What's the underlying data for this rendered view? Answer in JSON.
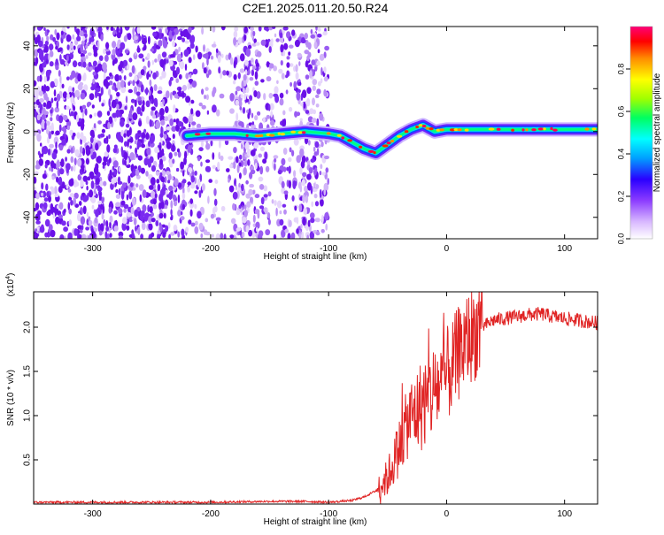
{
  "page": {
    "title": "C2E1.2025.011.20.50.R24"
  },
  "colors": {
    "snr_line": "#e02424",
    "axis": "#000000",
    "spectrogram_noise": "#7a1fe0",
    "colormap": [
      "#ffffff",
      "#ece0ff",
      "#8c3cff",
      "#2a00ff",
      "#00a0ff",
      "#00ffff",
      "#00ff60",
      "#a0ff00",
      "#ffff00",
      "#ff8c00",
      "#ff0000",
      "#ff0078"
    ]
  },
  "chart_data": [
    {
      "type": "heatmap",
      "title": "C2E1.2025.011.20.50.R24",
      "xlabel": "Height of straight line (km)",
      "ylabel": "Frequency (Hz)",
      "xlim": [
        -350,
        128
      ],
      "ylim": [
        -50,
        49
      ],
      "xticks": [
        -300,
        -200,
        -100,
        0,
        100
      ],
      "yticks": [
        -40,
        -20,
        0,
        20,
        40
      ],
      "colorbar": {
        "label": "Normalized spectral amplitude",
        "range": [
          0.0,
          1.0
        ],
        "ticks": [
          0.0,
          0.2,
          0.4,
          0.6,
          0.8
        ]
      },
      "signal_track": {
        "x": [
          -220,
          -200,
          -180,
          -160,
          -140,
          -120,
          -100,
          -90,
          -80,
          -70,
          -60,
          -50,
          -40,
          -30,
          -20,
          -10,
          0,
          20,
          40,
          60,
          80,
          100,
          128
        ],
        "frequency": [
          -2,
          -1,
          -1,
          -2,
          -1,
          0,
          -1,
          -2,
          -5,
          -8,
          -10,
          -6,
          -2,
          1,
          3,
          0,
          1,
          1,
          1,
          1,
          1,
          1,
          1
        ]
      },
      "noise_region": {
        "x_start": -350,
        "x_end": -100
      }
    },
    {
      "type": "line",
      "title": "",
      "xlabel": "Height of straight line (km)",
      "ylabel": "SNR (10 * v/v)",
      "y_exponent_label": "(x10",
      "y_exponent_power": "4",
      "y_exponent_close": ")",
      "xlim": [
        -350,
        128
      ],
      "ylim": [
        0,
        2.4
      ],
      "xticks": [
        -300,
        -200,
        -100,
        0,
        100
      ],
      "yticks": [
        0.5,
        1.0,
        1.5,
        2.0
      ],
      "series": [
        {
          "x": [
            -350,
            -300,
            -200,
            -150,
            -120,
            -100,
            -80,
            -70,
            -60,
            -50,
            -40,
            -35,
            -30,
            -25,
            -20,
            -15,
            -10,
            -5,
            0,
            5,
            10,
            15,
            20,
            25,
            30,
            40,
            50,
            60,
            70,
            80,
            90,
            100,
            110,
            120,
            128
          ],
          "values": [
            0.02,
            0.02,
            0.02,
            0.03,
            0.03,
            0.02,
            0.04,
            0.08,
            0.15,
            0.3,
            0.65,
            0.85,
            1.0,
            1.05,
            1.15,
            1.2,
            1.3,
            1.35,
            1.45,
            1.55,
            1.7,
            1.8,
            1.9,
            1.95,
            2.0,
            2.08,
            2.1,
            2.12,
            2.14,
            2.15,
            2.12,
            2.1,
            2.08,
            2.06,
            2.05
          ]
        }
      ]
    }
  ]
}
